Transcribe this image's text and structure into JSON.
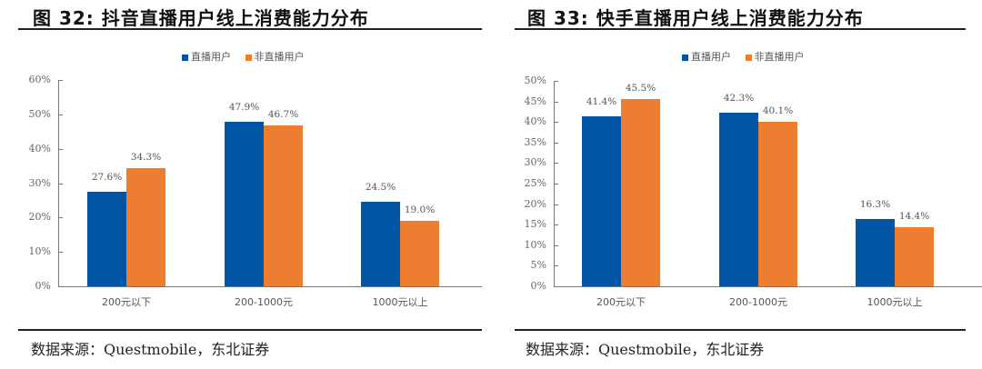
{
  "colors": {
    "series1": "#0055a5",
    "series2": "#ed7d31"
  },
  "charts": [
    {
      "title": "图  32: 抖音直播用户线上消费能力分布",
      "legend": [
        "直播用户",
        "非直播用户"
      ],
      "source": "数据来源：Questmobile，东北证券"
    },
    {
      "title": "图  33: 快手直播用户线上消费能力分布",
      "legend": [
        "直播用户",
        "非直播用户"
      ],
      "source": "数据来源：Questmobile，东北证券"
    }
  ],
  "chart_data": [
    {
      "type": "bar",
      "title": "图 32: 抖音直播用户线上消费能力分布",
      "categories": [
        "200元以下",
        "200-1000元",
        "1000元以上"
      ],
      "series": [
        {
          "name": "直播用户",
          "values": [
            27.6,
            47.9,
            24.5
          ],
          "labels": [
            "27.6%",
            "47.9%",
            "24.5%"
          ]
        },
        {
          "name": "非直播用户",
          "values": [
            34.3,
            46.7,
            19.0
          ],
          "labels": [
            "34.3%",
            "46.7%",
            "19.0%"
          ]
        }
      ],
      "yticks": [
        "0%",
        "10%",
        "20%",
        "30%",
        "40%",
        "50%",
        "60%"
      ],
      "ylim": [
        0,
        60
      ],
      "xlabel": "",
      "ylabel": "",
      "grid": false,
      "legend_position": "top"
    },
    {
      "type": "bar",
      "title": "图 33: 快手直播用户线上消费能力分布",
      "categories": [
        "200元以下",
        "200-1000元",
        "1000元以上"
      ],
      "series": [
        {
          "name": "直播用户",
          "values": [
            41.4,
            42.3,
            16.3
          ],
          "labels": [
            "41.4%",
            "42.3%",
            "16.3%"
          ]
        },
        {
          "name": "非直播用户",
          "values": [
            45.5,
            40.1,
            14.4
          ],
          "labels": [
            "45.5%",
            "40.1%",
            "14.4%"
          ]
        }
      ],
      "yticks": [
        "0%",
        "5%",
        "10%",
        "15%",
        "20%",
        "25%",
        "30%",
        "35%",
        "40%",
        "45%",
        "50%"
      ],
      "ylim": [
        0,
        50
      ],
      "xlabel": "",
      "ylabel": "",
      "grid": false,
      "legend_position": "top"
    }
  ]
}
